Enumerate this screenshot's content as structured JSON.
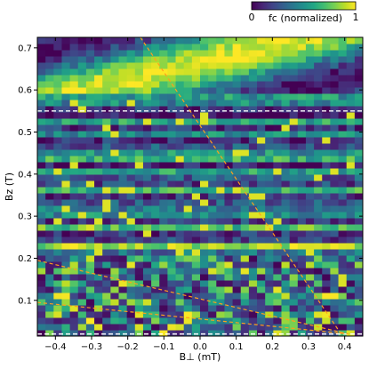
{
  "chart_data": {
    "type": "heatmap",
    "title": "",
    "xlabel": "B⊥ (mT)",
    "ylabel": "Bz (T)",
    "xlim": [
      -0.45,
      0.45
    ],
    "ylim": [
      0.015,
      0.725
    ],
    "x_ticks": [
      -0.4,
      -0.3,
      -0.2,
      -0.1,
      0.0,
      0.1,
      0.2,
      0.3,
      0.4
    ],
    "x_tick_labels": [
      "−0.4",
      "−0.3",
      "−0.2",
      "−0.1",
      "0.0",
      "0.1",
      "0.2",
      "0.3",
      "0.4"
    ],
    "y_ticks": [
      0.1,
      0.2,
      0.3,
      0.4,
      0.5,
      0.6,
      0.7
    ],
    "y_tick_labels": [
      "0.1",
      "0.2",
      "0.3",
      "0.4",
      "0.5",
      "0.6",
      "0.7"
    ],
    "grid": false,
    "colormap": "viridis",
    "colorbar": {
      "label": "fc (normalized)",
      "min_label": "0",
      "max_label": "1",
      "placement": "top-right",
      "min": 0,
      "max": 1
    },
    "grid_shape": {
      "columns": 40,
      "rows": 48
    },
    "annotations": {
      "horizontal_dashed_lines": [
        {
          "y": 0.55,
          "color": "#ffffff"
        },
        {
          "y": 0.02,
          "color": "#ffffff"
        }
      ],
      "diagonal_dashed_lines": [
        {
          "x1": -0.165,
          "y1": 0.725,
          "x2": 0.39,
          "y2": 0.02,
          "color": "#ff9f1c"
        },
        {
          "x1": -0.45,
          "y1": 0.195,
          "x2": 0.41,
          "y2": 0.02,
          "color": "#ff9f1c"
        },
        {
          "x1": -0.45,
          "y1": 0.095,
          "x2": 0.41,
          "y2": 0.02,
          "color": "#ff9f1c"
        }
      ]
    }
  }
}
